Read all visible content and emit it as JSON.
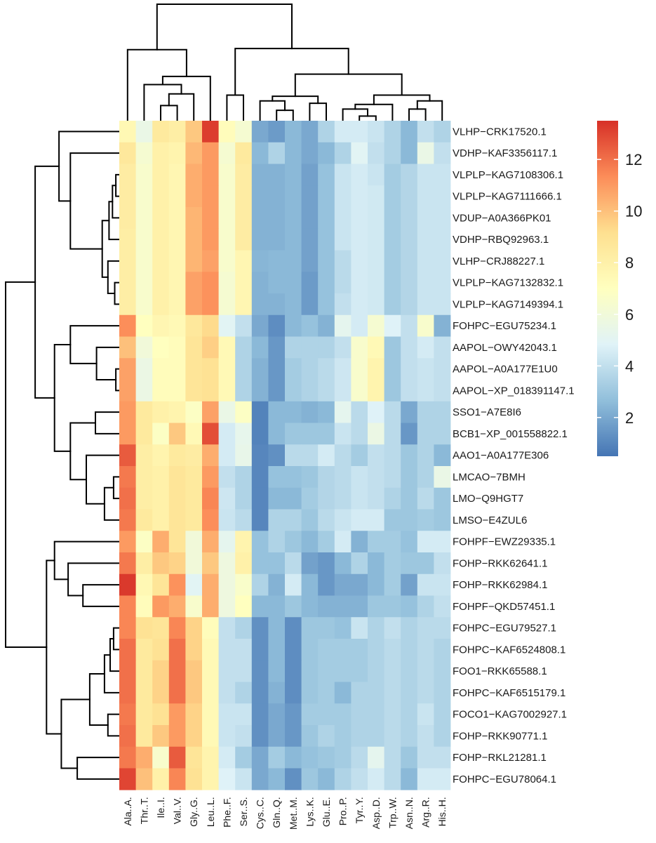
{
  "chart_data": {
    "type": "heatmap",
    "title": "",
    "columns": [
      "Ala..A.",
      "Thr..T.",
      "Ile..I.",
      "Val..V.",
      "Gly..G.",
      "Leu..L.",
      "Phe..F.",
      "Ser..S.",
      "Cys..C.",
      "Gln..Q.",
      "Met..M.",
      "Lys..K.",
      "Glu..E.",
      "Pro..P.",
      "Tyr..Y.",
      "Asp..D.",
      "Trp..W.",
      "Asn..N.",
      "Arg..R.",
      "His..H."
    ],
    "rows": [
      "VLHP−CRK17520.1",
      "VDHP−KAF3356117.1",
      "VLPLP−KAG7108306.1",
      "VLPLP−KAG7111666.1",
      "VDUP−A0A366PK01",
      "VDHP−RBQ92963.1",
      "VLHP−CRJ88227.1",
      "VLPLP−KAG7132832.1",
      "VLPLP−KAG7149394.1",
      "FOHPC−EGU75234.1",
      "AAPOL−OWY42043.1",
      "AAPOL−A0A177E1U0",
      "AAPOL−XP_018391147.1",
      "SSO1−A7E8I6",
      "BCB1−XP_001558822.1",
      "AAO1−A0A177E306",
      "LMCAO−7BMH",
      "LMO−Q9HGT7",
      "LMSO−E4ZUL6",
      "FOHPF−EWZ29335.1",
      "FOHP−RKK62641.1",
      "FOHP−RKK62984.1",
      "FOHPF−QKD57451.1",
      "FOHPC−EGU79527.1",
      "FOHPC−KAF6524808.1",
      "FOO1−RKK65588.1",
      "FOHPC−KAF6515179.1",
      "FOCO1−KAG7002927.1",
      "FOHP−RKK90771.1",
      "FOHP−RKL21281.1",
      "FOHPC−EGU78064.1"
    ],
    "values": [
      [
        7.5,
        5.5,
        8.5,
        8.2,
        9.8,
        13.2,
        7.2,
        6.3,
        2.0,
        1.6,
        2.5,
        2.0,
        3.5,
        4.5,
        4.5,
        4.2,
        3.5,
        2.5,
        4.0,
        3.5
      ],
      [
        8.6,
        6.3,
        8.0,
        7.8,
        10.2,
        11.0,
        6.3,
        8.5,
        2.5,
        3.5,
        2.5,
        2.0,
        2.5,
        3.5,
        5.0,
        4.0,
        3.5,
        2.5,
        5.5,
        4.0
      ],
      [
        8.3,
        6.5,
        8.0,
        7.6,
        10.5,
        11.0,
        6.5,
        8.3,
        2.3,
        2.3,
        2.5,
        1.8,
        2.8,
        4.2,
        4.5,
        4.2,
        3.2,
        3.6,
        4.2,
        4.2
      ],
      [
        8.3,
        6.5,
        8.0,
        7.6,
        10.5,
        11.0,
        6.5,
        8.3,
        2.3,
        2.3,
        2.5,
        1.8,
        2.8,
        4.2,
        4.5,
        4.4,
        3.2,
        3.6,
        4.2,
        4.2
      ],
      [
        8.3,
        6.5,
        8.0,
        7.6,
        10.3,
        11.0,
        6.5,
        8.3,
        2.3,
        2.3,
        2.5,
        1.8,
        2.8,
        4.2,
        4.5,
        4.4,
        3.2,
        3.6,
        4.2,
        4.2
      ],
      [
        8.2,
        6.5,
        8.0,
        7.6,
        10.3,
        11.0,
        6.5,
        8.3,
        2.3,
        2.3,
        2.5,
        1.8,
        2.8,
        4.2,
        4.5,
        4.4,
        3.2,
        3.6,
        4.2,
        4.2
      ],
      [
        8.2,
        6.5,
        8.0,
        7.6,
        10.3,
        10.8,
        6.5,
        7.6,
        2.4,
        2.5,
        2.5,
        1.8,
        2.8,
        3.8,
        4.5,
        4.4,
        3.2,
        3.6,
        4.2,
        4.2
      ],
      [
        8.2,
        6.5,
        8.0,
        7.6,
        10.8,
        11.2,
        6.3,
        7.6,
        2.3,
        2.5,
        2.5,
        1.6,
        2.8,
        3.8,
        4.5,
        4.4,
        3.2,
        3.6,
        4.2,
        4.2
      ],
      [
        8.2,
        6.5,
        8.0,
        7.6,
        10.8,
        11.2,
        6.3,
        7.6,
        2.3,
        2.3,
        2.5,
        1.6,
        2.8,
        4.0,
        4.5,
        4.4,
        3.2,
        3.6,
        4.2,
        4.2
      ],
      [
        11.3,
        7.0,
        7.6,
        7.4,
        8.6,
        9.3,
        5.0,
        4.0,
        2.0,
        1.2,
        2.5,
        2.8,
        2.3,
        5.2,
        4.5,
        6.3,
        4.8,
        4.0,
        6.5,
        2.3
      ],
      [
        10.0,
        6.0,
        7.0,
        7.2,
        8.8,
        9.6,
        7.4,
        3.5,
        2.5,
        1.5,
        3.5,
        3.5,
        3.5,
        4.0,
        6.5,
        7.4,
        3.0,
        4.0,
        4.5,
        4.0
      ],
      [
        10.8,
        5.6,
        7.2,
        7.2,
        8.8,
        9.0,
        7.4,
        3.5,
        2.3,
        1.5,
        3.2,
        3.5,
        3.8,
        4.3,
        6.5,
        7.8,
        3.0,
        4.0,
        4.2,
        4.0
      ],
      [
        10.8,
        5.6,
        7.2,
        7.2,
        8.8,
        9.0,
        7.4,
        3.5,
        2.3,
        1.5,
        3.2,
        3.5,
        3.8,
        4.3,
        6.5,
        7.8,
        3.0,
        4.0,
        4.2,
        4.0
      ],
      [
        11.0,
        8.5,
        8.0,
        7.8,
        6.8,
        10.8,
        5.5,
        6.8,
        0.9,
        2.5,
        2.5,
        2.3,
        2.5,
        5.2,
        3.8,
        4.8,
        3.8,
        2.0,
        3.5,
        3.5
      ],
      [
        11.0,
        8.5,
        6.8,
        9.8,
        7.4,
        12.8,
        4.5,
        5.3,
        0.9,
        2.5,
        3.0,
        3.0,
        3.0,
        4.2,
        3.8,
        5.6,
        3.8,
        1.5,
        3.5,
        3.5
      ],
      [
        12.5,
        8.2,
        7.8,
        8.5,
        8.3,
        10.5,
        4.5,
        5.4,
        1.0,
        1.3,
        3.8,
        3.8,
        4.5,
        3.8,
        3.2,
        4.0,
        3.8,
        3.0,
        3.5,
        2.5
      ],
      [
        11.8,
        8.2,
        8.0,
        8.8,
        8.5,
        11.0,
        4.0,
        3.5,
        1.0,
        2.8,
        2.8,
        3.0,
        3.6,
        3.8,
        4.2,
        4.0,
        3.8,
        3.0,
        3.5,
        5.5
      ],
      [
        12.0,
        8.2,
        8.0,
        8.8,
        8.5,
        11.5,
        4.3,
        3.5,
        1.0,
        2.5,
        2.5,
        3.2,
        3.6,
        3.8,
        4.2,
        4.0,
        3.5,
        3.0,
        3.8,
        3.0
      ],
      [
        11.8,
        8.5,
        8.0,
        8.8,
        8.5,
        11.3,
        4.2,
        3.8,
        1.0,
        3.5,
        3.5,
        3.0,
        3.8,
        4.2,
        4.5,
        4.5,
        3.0,
        3.0,
        3.2,
        3.0
      ],
      [
        11.0,
        6.8,
        10.5,
        8.8,
        6.0,
        10.5,
        5.2,
        7.8,
        2.8,
        3.5,
        3.0,
        2.5,
        3.2,
        4.5,
        2.3,
        3.2,
        3.2,
        2.8,
        4.5,
        4.5
      ],
      [
        11.8,
        8.2,
        9.8,
        9.5,
        6.0,
        9.8,
        5.8,
        8.0,
        2.8,
        2.8,
        3.8,
        1.8,
        1.5,
        2.5,
        3.5,
        2.5,
        3.2,
        3.0,
        3.0,
        4.0
      ],
      [
        13.3,
        7.5,
        8.8,
        11.2,
        5.0,
        10.5,
        5.8,
        6.6,
        3.5,
        2.3,
        4.5,
        2.5,
        1.5,
        2.0,
        2.0,
        2.5,
        3.2,
        1.8,
        4.2,
        4.2
      ],
      [
        11.5,
        7.2,
        11.0,
        10.5,
        6.5,
        10.5,
        5.8,
        7.0,
        2.5,
        2.5,
        3.0,
        2.5,
        2.3,
        2.3,
        2.3,
        3.0,
        3.0,
        2.8,
        3.5,
        4.0
      ],
      [
        11.5,
        9.0,
        8.8,
        11.5,
        9.5,
        7.2,
        4.0,
        3.5,
        1.3,
        2.5,
        1.2,
        3.0,
        3.0,
        2.8,
        4.2,
        3.5,
        4.0,
        3.5,
        3.8,
        3.8
      ],
      [
        12.0,
        8.5,
        9.0,
        12.0,
        9.5,
        7.4,
        4.0,
        4.0,
        1.3,
        2.5,
        1.2,
        3.0,
        3.2,
        3.2,
        3.2,
        3.5,
        3.8,
        3.5,
        3.8,
        3.5
      ],
      [
        12.0,
        8.5,
        9.5,
        12.0,
        9.8,
        7.4,
        4.0,
        4.0,
        1.3,
        2.5,
        1.2,
        3.0,
        3.2,
        3.2,
        3.2,
        3.5,
        3.8,
        3.5,
        3.8,
        3.5
      ],
      [
        12.0,
        8.5,
        9.5,
        12.0,
        9.8,
        7.4,
        4.0,
        3.5,
        1.3,
        2.3,
        1.2,
        3.0,
        3.2,
        2.5,
        3.5,
        3.5,
        3.8,
        3.5,
        3.8,
        3.5
      ],
      [
        11.8,
        8.5,
        9.0,
        11.0,
        9.5,
        7.4,
        4.2,
        4.2,
        1.3,
        2.0,
        1.5,
        3.2,
        3.2,
        3.2,
        3.5,
        3.5,
        3.8,
        3.5,
        4.2,
        3.5
      ],
      [
        12.0,
        8.5,
        9.8,
        11.0,
        9.5,
        7.4,
        4.2,
        4.0,
        1.3,
        2.0,
        1.5,
        3.0,
        3.5,
        3.2,
        3.5,
        3.5,
        3.8,
        3.5,
        4.0,
        3.5
      ],
      [
        11.8,
        10.5,
        6.5,
        12.5,
        8.8,
        7.8,
        4.5,
        3.2,
        2.0,
        3.2,
        2.5,
        2.8,
        3.0,
        3.2,
        3.8,
        5.2,
        3.8,
        3.0,
        4.0,
        4.0
      ],
      [
        13.0,
        10.0,
        8.0,
        11.5,
        9.0,
        7.8,
        4.8,
        4.2,
        2.0,
        2.5,
        1.3,
        3.0,
        2.5,
        3.5,
        4.0,
        4.5,
        3.8,
        2.5,
        4.5,
        4.5
      ]
    ],
    "color_scale": {
      "min": 0.5,
      "max": 13.5,
      "stops": [
        "#4575b4",
        "#91bfdb",
        "#e0f3f8",
        "#ffffbf",
        "#fee090",
        "#fc8d59",
        "#d73027"
      ],
      "legend_ticks": [
        2,
        4,
        6,
        8,
        10,
        12
      ],
      "legend_tick_labels": [
        "2",
        "4",
        "6",
        "8",
        "10",
        "12"
      ]
    },
    "row_dendrogram": true,
    "column_dendrogram": true,
    "legend_position": "right"
  }
}
